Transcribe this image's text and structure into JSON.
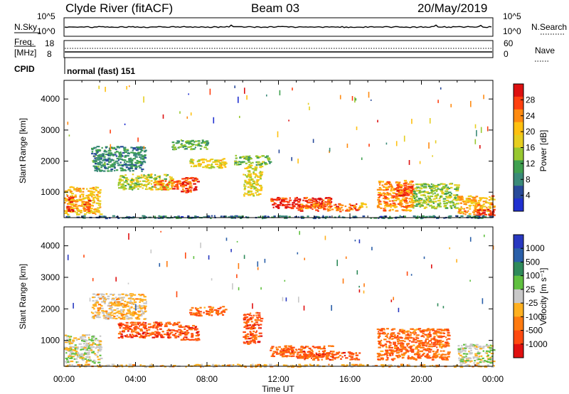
{
  "header": {
    "station": "Clyde River (fitACF)",
    "beam": "Beam 03",
    "date": "20/May/2019"
  },
  "top_panels": {
    "nsky_label": "N.Sky",
    "nsearch_label": "N.Search",
    "noise_ticks": [
      "10^5",
      "10^0"
    ],
    "freq_label": "Freq.",
    "freq_unit": "[MHz]",
    "freq_ticks": [
      "18",
      "8"
    ],
    "nave_label": "Nave",
    "nave_ticks": [
      "60",
      "0"
    ],
    "cpid_label": "CPID",
    "cpid_value": "normal (fast) 151"
  },
  "chart_data": [
    {
      "type": "heatmap",
      "title": "",
      "quantity": "Power",
      "colorbar_label": "Power [dB]",
      "colorbar_ticks": [
        "28",
        "24",
        "20",
        "16",
        "12",
        "8",
        "4"
      ],
      "colorbar_colors": [
        "#dd1010",
        "#ff4010",
        "#ff8a10",
        "#ffc010",
        "#e6ce20",
        "#98c830",
        "#40a050",
        "#3a8a78",
        "#284a9a",
        "#2030d0"
      ],
      "xlabel": "Time UT",
      "ylabel": "Slant Range [km]",
      "xticks": [
        "00:00",
        "04:00",
        "08:00",
        "12:00",
        "16:00",
        "20:00",
        "00:00"
      ],
      "yticks": [
        "1000",
        "2000",
        "3000",
        "4000"
      ],
      "xlim_hours": [
        0,
        24
      ],
      "ylim_km": [
        180,
        4600
      ],
      "regions": [
        {
          "t": [
            0.0,
            2.0
          ],
          "r": [
            300,
            1200
          ],
          "level": 0.65
        },
        {
          "t": [
            0.1,
            0.5
          ],
          "r": [
            400,
            900
          ],
          "level": 0.95
        },
        {
          "t": [
            1.0,
            1.4
          ],
          "r": [
            350,
            750
          ],
          "level": 0.85
        },
        {
          "t": [
            1.5,
            4.5
          ],
          "r": [
            1700,
            2500
          ],
          "level": 0.25
        },
        {
          "t": [
            3.0,
            6.0
          ],
          "r": [
            1100,
            1600
          ],
          "level": 0.5
        },
        {
          "t": [
            5.0,
            6.5
          ],
          "r": [
            1100,
            1400
          ],
          "level": 0.8
        },
        {
          "t": [
            6.5,
            7.5
          ],
          "r": [
            1000,
            1500
          ],
          "level": 0.9
        },
        {
          "t": [
            7.0,
            9.0
          ],
          "r": [
            1800,
            2100
          ],
          "level": 0.6
        },
        {
          "t": [
            6.0,
            8.0
          ],
          "r": [
            2400,
            2700
          ],
          "level": 0.35
        },
        {
          "t": [
            9.5,
            11.5
          ],
          "r": [
            1900,
            2200
          ],
          "level": 0.4
        },
        {
          "t": [
            10.0,
            11.0
          ],
          "r": [
            900,
            1900
          ],
          "level": 0.55
        },
        {
          "t": [
            11.5,
            15.0
          ],
          "r": [
            500,
            850
          ],
          "level": 0.95
        },
        {
          "t": [
            13.0,
            16.5
          ],
          "r": [
            400,
            650
          ],
          "level": 0.85
        },
        {
          "t": [
            16.5,
            17.0
          ],
          "r": [
            500,
            700
          ],
          "level": 0.6
        },
        {
          "t": [
            17.5,
            19.5
          ],
          "r": [
            400,
            1400
          ],
          "level": 0.75
        },
        {
          "t": [
            18.5,
            19.5
          ],
          "r": [
            900,
            1300
          ],
          "level": 0.92
        },
        {
          "t": [
            19.5,
            22.0
          ],
          "r": [
            500,
            1300
          ],
          "level": 0.45
        },
        {
          "t": [
            22.0,
            24.0
          ],
          "r": [
            300,
            900
          ],
          "level": 0.7
        },
        {
          "t": [
            23.0,
            24.0
          ],
          "r": [
            250,
            500
          ],
          "level": 0.95
        },
        {
          "t": [
            0.0,
            24.0
          ],
          "r": [
            180,
            260
          ],
          "level": 0.2
        }
      ]
    },
    {
      "type": "heatmap",
      "title": "",
      "quantity": "Velocity",
      "colorbar_label": "Velocity [m s⁻¹]",
      "colorbar_ticks": [
        "1000",
        "500",
        "100",
        "25",
        "-25",
        "-100",
        "-500",
        "-1000"
      ],
      "colorbar_colors": [
        "#2838c0",
        "#2a5fa8",
        "#2f8a5a",
        "#60c040",
        "#c8c8c8",
        "#ffb020",
        "#ff7a10",
        "#ff4a10",
        "#e01010"
      ],
      "xlabel": "Time UT",
      "ylabel": "Slant Range [km]",
      "xticks": [
        "00:00",
        "04:00",
        "08:00",
        "12:00",
        "16:00",
        "20:00",
        "00:00"
      ],
      "yticks": [
        "1000",
        "2000",
        "3000",
        "4000"
      ],
      "xlim_hours": [
        0,
        24
      ],
      "ylim_km": [
        180,
        4600
      ],
      "regions": [
        {
          "t": [
            0.0,
            2.0
          ],
          "r": [
            300,
            1200
          ],
          "v": 0.0
        },
        {
          "t": [
            1.5,
            4.5
          ],
          "r": [
            1700,
            2500
          ],
          "v": -0.2
        },
        {
          "t": [
            3.0,
            6.5
          ],
          "r": [
            1100,
            1600
          ],
          "v": -0.7
        },
        {
          "t": [
            6.5,
            7.5
          ],
          "r": [
            1000,
            1500
          ],
          "v": -0.75
        },
        {
          "t": [
            7.0,
            9.0
          ],
          "r": [
            1800,
            2100
          ],
          "v": -0.6
        },
        {
          "t": [
            10.0,
            11.0
          ],
          "r": [
            900,
            1900
          ],
          "v": -0.7
        },
        {
          "t": [
            11.5,
            15.0
          ],
          "r": [
            500,
            850
          ],
          "v": -0.65
        },
        {
          "t": [
            13.0,
            16.5
          ],
          "r": [
            400,
            650
          ],
          "v": -0.65
        },
        {
          "t": [
            17.5,
            21.5
          ],
          "r": [
            400,
            1400
          ],
          "v": -0.6
        },
        {
          "t": [
            22.0,
            24.0
          ],
          "r": [
            300,
            900
          ],
          "v": 0.0
        },
        {
          "t": [
            0.0,
            24.0
          ],
          "r": [
            180,
            260
          ],
          "v": -0.2
        }
      ]
    }
  ]
}
